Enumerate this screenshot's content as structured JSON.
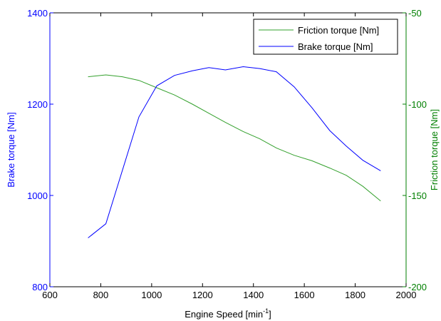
{
  "chart_data": {
    "type": "line",
    "xlabel": "Engine Speed [min",
    "xlabel_sup": "-1",
    "xlabel_suffix": "]",
    "xlim": [
      600,
      2000
    ],
    "xticks": [
      600,
      800,
      1000,
      1200,
      1400,
      1600,
      1800,
      2000
    ],
    "left_axis": {
      "label": "Brake torque [Nm]",
      "ylim": [
        800,
        1400
      ],
      "ticks": [
        800,
        1000,
        1200,
        1400
      ],
      "color": "#0000ff"
    },
    "right_axis": {
      "label": "Friction torque [Nm]",
      "ylim": [
        -200,
        -50
      ],
      "ticks": [
        -200,
        -150,
        -100,
        -50
      ],
      "color": "#007f00"
    },
    "legend_position": "top-right",
    "grid": false,
    "series": [
      {
        "name": "Friction torque [Nm]",
        "axis": "right",
        "color": "#33a02c",
        "x": [
          750,
          820,
          885,
          950,
          1020,
          1090,
          1160,
          1225,
          1290,
          1360,
          1425,
          1490,
          1560,
          1630,
          1700,
          1765,
          1830,
          1900
        ],
        "values": [
          -85,
          -84,
          -85,
          -87,
          -91,
          -95,
          -100,
          -105,
          -110,
          -115,
          -119,
          -124,
          -128,
          -131,
          -135,
          -139,
          -145,
          -153
        ]
      },
      {
        "name": "Brake torque [Nm]",
        "axis": "left",
        "color": "#0000ff",
        "x": [
          750,
          820,
          885,
          950,
          1020,
          1090,
          1160,
          1225,
          1290,
          1360,
          1425,
          1490,
          1560,
          1630,
          1700,
          1765,
          1830,
          1900
        ],
        "values": [
          907,
          938,
          1055,
          1172,
          1240,
          1263,
          1273,
          1280,
          1275,
          1282,
          1278,
          1271,
          1238,
          1192,
          1142,
          1108,
          1077,
          1054
        ]
      }
    ]
  }
}
